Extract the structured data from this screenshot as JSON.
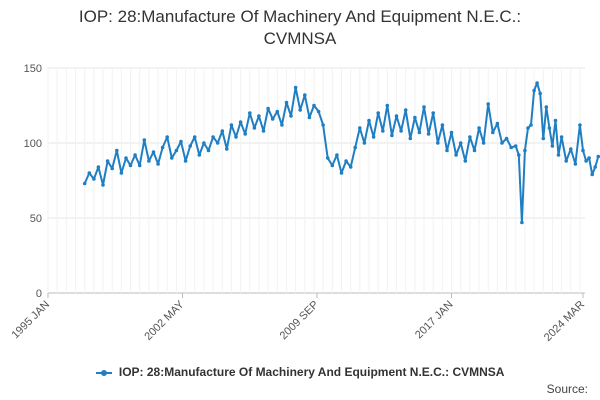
{
  "chart_data": {
    "type": "line",
    "title": "IOP: 28:Manufacture Of Machinery And Equipment N.E.C.: CVMNSA",
    "title_lines": [
      "IOP: 28:Manufacture Of Machinery And Equipment N.E.C.:",
      "CVMNSA"
    ],
    "xlabel": "",
    "ylabel": "",
    "ylim": [
      0,
      150
    ],
    "y_ticks": [
      0,
      50,
      100,
      150
    ],
    "x_range": [
      "1995-01",
      "2024-03"
    ],
    "x_tick_labels": [
      {
        "date": "1995-01",
        "label": "1995 JAN"
      },
      {
        "date": "2002-05",
        "label": "2002 MAY"
      },
      {
        "date": "2009-09",
        "label": "2009 SEP"
      },
      {
        "date": "2017-01",
        "label": "2017 JAN"
      },
      {
        "date": "2024-03",
        "label": "2024 MAR"
      }
    ],
    "grid": "horizontal",
    "legend_position": "bottom",
    "color": "#1f7fc2",
    "series": [
      {
        "name": "IOP: 28:Manufacture Of Machinery And Equipment N.E.C.: CVMNSA",
        "points": [
          [
            "1997-01",
            73
          ],
          [
            "1997-04",
            80
          ],
          [
            "1997-07",
            76
          ],
          [
            "1997-10",
            84
          ],
          [
            "1998-01",
            72
          ],
          [
            "1998-04",
            88
          ],
          [
            "1998-07",
            83
          ],
          [
            "1998-10",
            95
          ],
          [
            "1999-01",
            80
          ],
          [
            "1999-04",
            90
          ],
          [
            "1999-07",
            85
          ],
          [
            "1999-10",
            92
          ],
          [
            "2000-01",
            85
          ],
          [
            "2000-04",
            102
          ],
          [
            "2000-07",
            88
          ],
          [
            "2000-10",
            94
          ],
          [
            "2001-01",
            86
          ],
          [
            "2001-04",
            97
          ],
          [
            "2001-07",
            104
          ],
          [
            "2001-10",
            90
          ],
          [
            "2002-01",
            95
          ],
          [
            "2002-04",
            101
          ],
          [
            "2002-07",
            88
          ],
          [
            "2002-10",
            98
          ],
          [
            "2003-01",
            104
          ],
          [
            "2003-04",
            92
          ],
          [
            "2003-07",
            100
          ],
          [
            "2003-10",
            95
          ],
          [
            "2004-01",
            104
          ],
          [
            "2004-04",
            100
          ],
          [
            "2004-07",
            108
          ],
          [
            "2004-10",
            96
          ],
          [
            "2005-01",
            112
          ],
          [
            "2005-04",
            104
          ],
          [
            "2005-07",
            114
          ],
          [
            "2005-10",
            106
          ],
          [
            "2006-01",
            120
          ],
          [
            "2006-04",
            110
          ],
          [
            "2006-07",
            118
          ],
          [
            "2006-10",
            108
          ],
          [
            "2007-01",
            123
          ],
          [
            "2007-04",
            116
          ],
          [
            "2007-07",
            121
          ],
          [
            "2007-10",
            112
          ],
          [
            "2008-01",
            127
          ],
          [
            "2008-04",
            118
          ],
          [
            "2008-07",
            137
          ],
          [
            "2008-10",
            122
          ],
          [
            "2009-01",
            132
          ],
          [
            "2009-04",
            117
          ],
          [
            "2009-07",
            125
          ],
          [
            "2009-10",
            121
          ],
          [
            "2010-01",
            112
          ],
          [
            "2010-04",
            90
          ],
          [
            "2010-07",
            85
          ],
          [
            "2010-10",
            92
          ],
          [
            "2011-01",
            80
          ],
          [
            "2011-04",
            88
          ],
          [
            "2011-07",
            84
          ],
          [
            "2011-10",
            97
          ],
          [
            "2012-01",
            110
          ],
          [
            "2012-04",
            100
          ],
          [
            "2012-07",
            115
          ],
          [
            "2012-10",
            104
          ],
          [
            "2013-01",
            120
          ],
          [
            "2013-04",
            108
          ],
          [
            "2013-07",
            125
          ],
          [
            "2013-10",
            105
          ],
          [
            "2014-01",
            118
          ],
          [
            "2014-04",
            108
          ],
          [
            "2014-07",
            122
          ],
          [
            "2014-10",
            103
          ],
          [
            "2015-01",
            117
          ],
          [
            "2015-04",
            107
          ],
          [
            "2015-07",
            124
          ],
          [
            "2015-10",
            106
          ],
          [
            "2016-01",
            120
          ],
          [
            "2016-04",
            100
          ],
          [
            "2016-07",
            112
          ],
          [
            "2016-10",
            95
          ],
          [
            "2017-01",
            107
          ],
          [
            "2017-04",
            92
          ],
          [
            "2017-07",
            100
          ],
          [
            "2017-10",
            88
          ],
          [
            "2018-01",
            104
          ],
          [
            "2018-04",
            95
          ],
          [
            "2018-07",
            110
          ],
          [
            "2018-10",
            100
          ],
          [
            "2019-01",
            126
          ],
          [
            "2019-04",
            107
          ],
          [
            "2019-07",
            113
          ],
          [
            "2019-10",
            100
          ],
          [
            "2020-01",
            103
          ],
          [
            "2020-04",
            97
          ],
          [
            "2020-07",
            98
          ],
          [
            "2020-09",
            92
          ],
          [
            "2020-11",
            47
          ],
          [
            "2021-01",
            95
          ],
          [
            "2021-03",
            110
          ],
          [
            "2021-05",
            112
          ],
          [
            "2021-07",
            135
          ],
          [
            "2021-09",
            140
          ],
          [
            "2021-11",
            133
          ],
          [
            "2022-01",
            103
          ],
          [
            "2022-03",
            124
          ],
          [
            "2022-05",
            110
          ],
          [
            "2022-07",
            98
          ],
          [
            "2022-09",
            115
          ],
          [
            "2022-11",
            92
          ],
          [
            "2023-01",
            104
          ],
          [
            "2023-04",
            88
          ],
          [
            "2023-07",
            96
          ],
          [
            "2023-10",
            86
          ],
          [
            "2024-01",
            112
          ],
          [
            "2024-03",
            95
          ],
          [
            "2024-05",
            88
          ],
          [
            "2024-07",
            90
          ],
          [
            "2024-09",
            79
          ],
          [
            "2024-11",
            84
          ],
          [
            "2025-01",
            91
          ]
        ]
      }
    ]
  },
  "legend": {
    "label": "IOP: 28:Manufacture Of Machinery And Equipment N.E.C.: CVMNSA"
  },
  "footer": {
    "source_label": "Source:"
  }
}
